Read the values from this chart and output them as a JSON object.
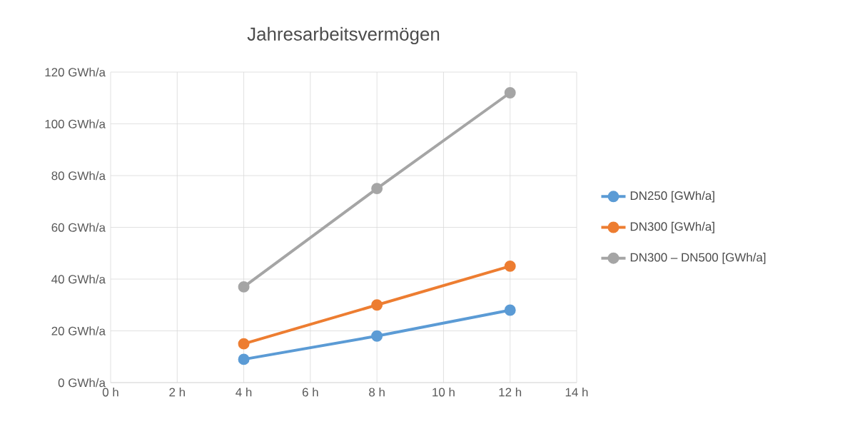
{
  "chart_data": {
    "type": "line",
    "title": "Jahresarbeitsvermögen",
    "x": [
      4,
      8,
      12
    ],
    "series": [
      {
        "name": "DN250 [GWh/a]",
        "color": "#5b9bd5",
        "values": [
          9,
          18,
          28
        ]
      },
      {
        "name": "DN300 [GWh/a]",
        "color": "#ed7d31",
        "values": [
          15,
          30,
          45
        ]
      },
      {
        "name": "DN300 – DN500 [GWh/a]",
        "color": "#a5a5a5",
        "values": [
          37,
          75,
          112
        ]
      }
    ],
    "xlim": [
      0,
      14
    ],
    "xticks": [
      {
        "value": 0,
        "label": "0 h"
      },
      {
        "value": 2,
        "label": "2 h"
      },
      {
        "value": 4,
        "label": "4 h"
      },
      {
        "value": 6,
        "label": "6 h"
      },
      {
        "value": 8,
        "label": "8 h"
      },
      {
        "value": 10,
        "label": "10 h"
      },
      {
        "value": 12,
        "label": "12 h"
      },
      {
        "value": 14,
        "label": "14 h"
      }
    ],
    "ylim": [
      0,
      120
    ],
    "yticks": [
      {
        "value": 0,
        "label": "0 GWh/a"
      },
      {
        "value": 20,
        "label": "20 GWh/a"
      },
      {
        "value": 40,
        "label": "40 GWh/a"
      },
      {
        "value": 60,
        "label": "60 GWh/a"
      },
      {
        "value": 80,
        "label": "80 GWh/a"
      },
      {
        "value": 100,
        "label": "100 GWh/a"
      },
      {
        "value": 120,
        "label": "120 GWh/a"
      }
    ],
    "grid": true,
    "legend": "right",
    "marker": "circle",
    "line_style": "solid"
  }
}
